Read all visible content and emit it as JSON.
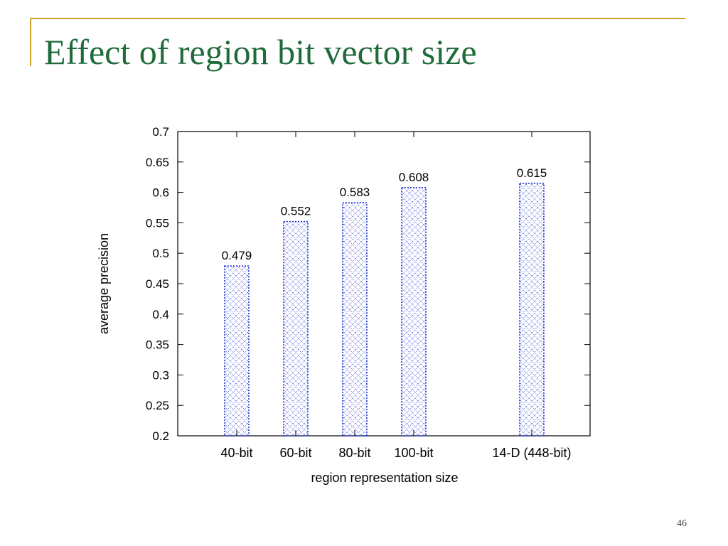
{
  "slide": {
    "title": "Effect of region bit vector size",
    "page_number": "46"
  },
  "colors": {
    "title": "#1f6b3a",
    "accent": "#c9a227",
    "bar_stroke": "#1a2fd1"
  },
  "chart_data": {
    "type": "bar",
    "categories": [
      "40-bit",
      "60-bit",
      "80-bit",
      "100-bit",
      "14-D (448-bit)"
    ],
    "values": [
      0.479,
      0.552,
      0.583,
      0.608,
      0.615
    ],
    "value_labels": [
      "0.479",
      "0.552",
      "0.583",
      "0.608",
      "0.615"
    ],
    "xlabel": "region representation size",
    "ylabel": "average precision",
    "ylim": [
      0.2,
      0.7
    ],
    "yticks": [
      "0.2",
      "0.25",
      "0.3",
      "0.35",
      "0.4",
      "0.45",
      "0.5",
      "0.55",
      "0.6",
      "0.65",
      "0.7"
    ],
    "grid": false,
    "legend": "none",
    "bar_fill": "crosshatch"
  }
}
